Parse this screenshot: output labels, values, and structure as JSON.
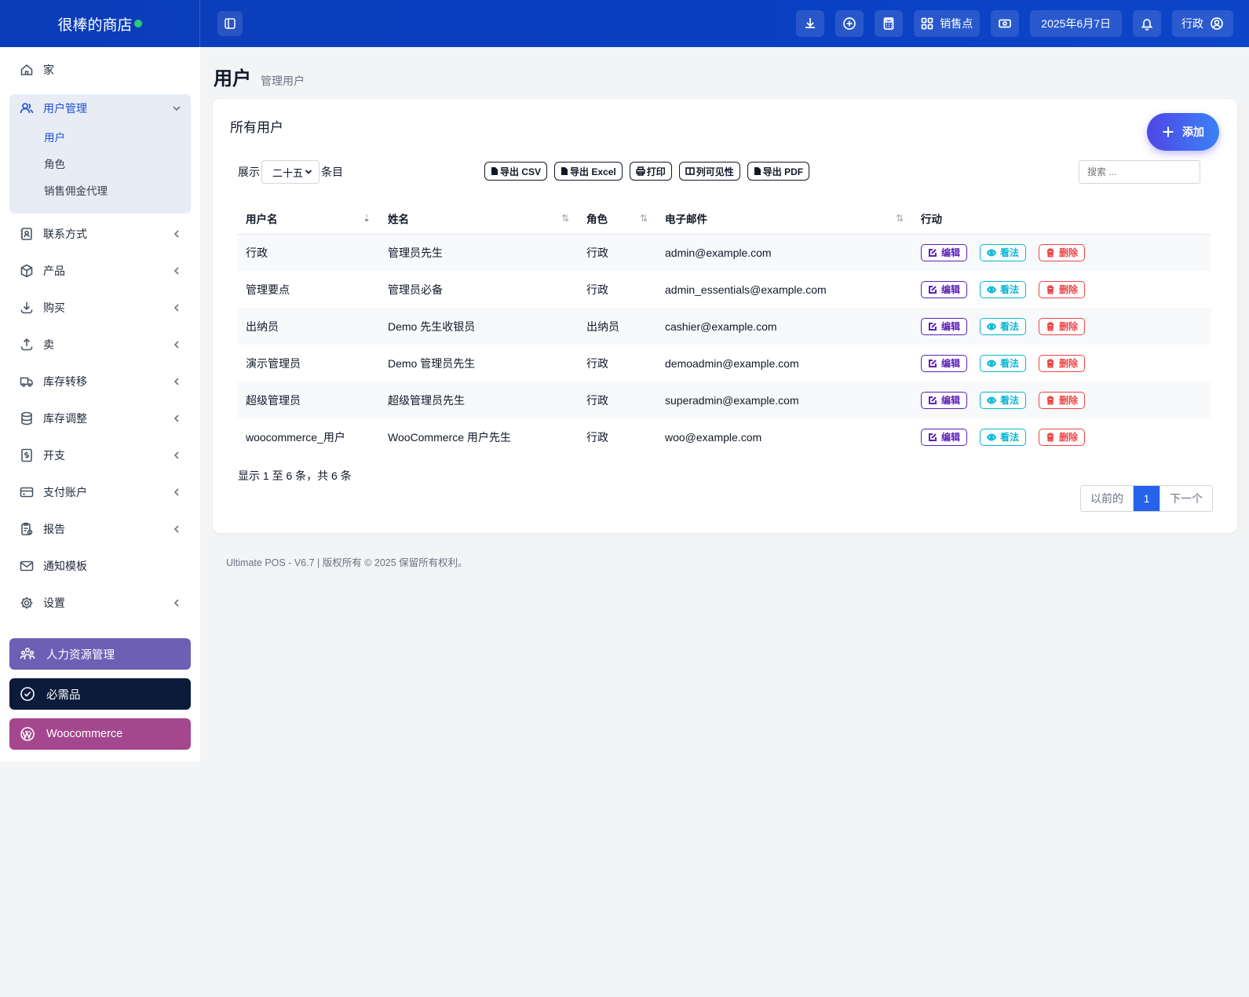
{
  "brand": {
    "name": "很棒的商店",
    "status_color": "#2ecc71"
  },
  "topbar": {
    "pos_label": "销售点",
    "date": "2025年6月7日",
    "user_label": "行政"
  },
  "sidebar": {
    "home": "家",
    "user_mgmt": {
      "label": "用户管理",
      "items": [
        "用户",
        "角色",
        "销售佣金代理"
      ]
    },
    "items": [
      "联系方式",
      "产品",
      "购买",
      "卖",
      "库存转移",
      "库存调整",
      "开支",
      "支付账户",
      "报告",
      "通知模板",
      "设置"
    ],
    "pills": [
      {
        "label": "人力资源管理",
        "color": "#6d5fb3"
      },
      {
        "label": "必需品",
        "color": "#0b1b3a"
      },
      {
        "label": "Woocommerce",
        "color": "#a4478e"
      }
    ]
  },
  "page": {
    "title": "用户",
    "subtitle": "管理用户"
  },
  "card": {
    "title": "所有用户",
    "add_label": "添加",
    "show_label": "展示",
    "entries_label": "条目",
    "page_length": "二十五",
    "exports": [
      "导出 CSV",
      "导出 Excel",
      "打印",
      "列可见性",
      "导出 PDF"
    ],
    "search_placeholder": "搜索 ..."
  },
  "table": {
    "headers": [
      "用户名",
      "姓名",
      "角色",
      "电子邮件",
      "行动"
    ],
    "actions": {
      "edit": "编辑",
      "view": "看法",
      "delete": "删除"
    },
    "rows": [
      {
        "username": "行政",
        "name": "管理员先生",
        "role": "行政",
        "email": "admin@example.com"
      },
      {
        "username": "管理要点",
        "name": "管理员必备",
        "role": "行政",
        "email": "admin_essentials@example.com"
      },
      {
        "username": "出纳员",
        "name": "Demo 先生收银员",
        "role": "出纳员",
        "email": "cashier@example.com"
      },
      {
        "username": "演示管理员",
        "name": "Demo 管理员先生",
        "role": "行政",
        "email": "demoadmin@example.com"
      },
      {
        "username": "超级管理员",
        "name": "超级管理员先生",
        "role": "行政",
        "email": "superadmin@example.com"
      },
      {
        "username": "woocommerce_用户",
        "name": "WooCommerce 用户先生",
        "role": "行政",
        "email": "woo@example.com"
      }
    ]
  },
  "info": "显示 1 至 6 条，共 6 条",
  "pager": {
    "prev": "以前的",
    "current": "1",
    "next": "下一个"
  },
  "footer": "Ultimate POS - V6.7 | 版权所有 © 2025 保留所有权利。"
}
